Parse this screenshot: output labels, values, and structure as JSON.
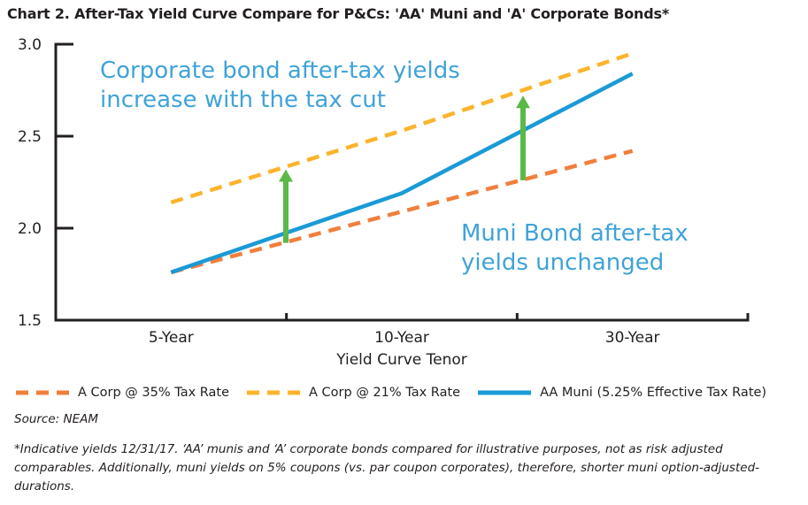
{
  "title": "Chart 2. After-Tax Yield Curve Compare for P&Cs: 'AA' Muni and 'A' Corporate Bonds*",
  "chart_data": {
    "type": "line",
    "title": "Chart 2. After-Tax Yield Curve Compare for P&Cs: 'AA' Muni and 'A' Corporate Bonds*",
    "xlabel": "Yield Curve Tenor",
    "ylabel": "",
    "categories": [
      "5-Year",
      "10-Year",
      "30-Year"
    ],
    "ylim": [
      1.5,
      3.0
    ],
    "yticks": [
      "1.5",
      "2.0",
      "2.5",
      "3.0"
    ],
    "grid": false,
    "legend": "bottom",
    "series": [
      {
        "name": "A Corp @ 35% Tax Rate",
        "values": [
          1.76,
          2.09,
          2.42
        ],
        "color": "#f07f3c",
        "style": "dashed"
      },
      {
        "name": "A Corp @ 21% Tax Rate",
        "values": [
          2.14,
          2.53,
          2.95
        ],
        "color": "#fbb42c",
        "style": "dashed"
      },
      {
        "name": "AA Muni (5.25% Effective Tax Rate)",
        "values": [
          1.76,
          2.19,
          2.84
        ],
        "color": "#1a9ad6",
        "style": "solid"
      }
    ],
    "annotations": [
      {
        "text": "Corporate bond after-tax yields increase with the tax cut",
        "lines": [
          "Corporate bond after-tax yields",
          "increase with the tax cut"
        ],
        "color": "#3fa3d8"
      },
      {
        "text": "Muni Bond after-tax yields unchanged",
        "lines": [
          "Muni Bond after-tax",
          "yields unchanged"
        ],
        "color": "#3fa3d8"
      }
    ],
    "arrows": [
      {
        "from": 1.92,
        "to": 2.32,
        "position": "between 5-Year and 10-Year",
        "color": "#5bb947"
      },
      {
        "from": 2.26,
        "to": 2.72,
        "position": "between 10-Year and 30-Year",
        "color": "#5bb947"
      }
    ]
  },
  "source": "Source: NEAM",
  "footnote": "*Indicative yields 12/31/17. ‘AA’ munis and ‘A’ corporate bonds compared for illustrative purposes, not as risk adjusted comparables. Additionally, muni yields on 5% coupons (vs. par coupon corporates), therefore, shorter muni option-adjusted-durations."
}
